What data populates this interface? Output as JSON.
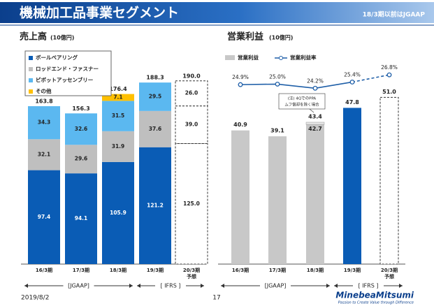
{
  "header": {
    "title": "機械加工品事業セグメント",
    "note": "18/3期以前はJGAAP"
  },
  "chart_data": [
    {
      "type": "stacked-bar",
      "title": "売上高",
      "unit": "(10億円)",
      "categories": [
        "16/3期",
        "17/3期",
        "18/3期",
        "19/3期",
        "20/3期"
      ],
      "category_notes": [
        null,
        null,
        null,
        null,
        "予想"
      ],
      "dashed": [
        false,
        false,
        false,
        false,
        true
      ],
      "series": [
        {
          "name": "ボールベアリング",
          "color": "#0a5cb5",
          "values": [
            97.4,
            94.1,
            105.9,
            121.2,
            125
          ],
          "value_labels": [
            "97.4",
            "94.1",
            "105.9",
            "121.2",
            "125.0"
          ]
        },
        {
          "name": "ロッドエンド・ファスナー",
          "color": "#bfbfbf",
          "values": [
            32.1,
            29.6,
            31.9,
            37.6,
            39
          ],
          "value_labels": [
            "32.1",
            "29.6",
            "31.9",
            "37.6",
            "39.0"
          ]
        },
        {
          "name": "ピボットアッセンブリー",
          "color": "#5bb8f0",
          "values": [
            34.3,
            32.6,
            31.5,
            29.5,
            26
          ],
          "value_labels": [
            "34.3",
            "32.6",
            "31.5",
            "29.5",
            "26.0"
          ]
        },
        {
          "name": "その他",
          "color": "#ffc000",
          "values": [
            null,
            null,
            7.1,
            null,
            null
          ]
        }
      ],
      "totals": [
        163.8,
        156.3,
        176.4,
        188.3,
        190
      ],
      "total_labels": [
        "163.8",
        "156.3",
        "176.4",
        "188.3",
        "190.0"
      ],
      "ylim": [
        0,
        200
      ],
      "legend": "top-left",
      "periods": [
        {
          "label": "[JGAAP]"
        },
        {
          "label": "[ IFRS ]"
        }
      ]
    },
    {
      "type": "bar-line",
      "title": "営業利益",
      "unit": "(10億円)",
      "categories": [
        "16/3期",
        "17/3期",
        "18/3期",
        "19/3期",
        "20/3期"
      ],
      "category_notes": [
        null,
        null,
        null,
        null,
        "予想"
      ],
      "dashed": [
        false,
        false,
        false,
        false,
        true
      ],
      "series": [
        {
          "name": "営業利益",
          "type": "bar",
          "color": "#c8c8c8",
          "point_colors": [
            "#c8c8c8",
            "#c8c8c8",
            "#c8c8c8",
            "#0a5cb5",
            "#ffffff"
          ],
          "values": [
            40.9,
            39.1,
            42.7,
            47.8,
            51
          ],
          "value_labels": [
            "40.9",
            "39.1",
            "42.7",
            "47.8",
            "51.0"
          ]
        },
        {
          "name": "営業利益率",
          "type": "line",
          "axis": "y2",
          "color": "#1f5fa8",
          "values": [
            24.9,
            25,
            24.2,
            25.4,
            26.8
          ],
          "value_labels": [
            "24.9%",
            "25.0%",
            "24.2%",
            "25.4%",
            "26.8%"
          ]
        }
      ],
      "adjusted": {
        "values": [
          null,
          null,
          43.4,
          null,
          null
        ],
        "note": [
          "(注) 4QでのPPA",
          "ムフ償却を除く場合"
        ]
      },
      "ylim": [
        0,
        59
      ],
      "y2lim": [
        -10,
        27.5
      ],
      "legend": "top-left",
      "periods": [
        {
          "label": "[JGAAP]"
        },
        {
          "label": "[ IFRS ]"
        }
      ]
    }
  ],
  "footer": {
    "date": "2019/8/2",
    "page": "17",
    "logo": "MinebeaMitsumi",
    "tagline": "Passion to Create Value through Difference"
  }
}
